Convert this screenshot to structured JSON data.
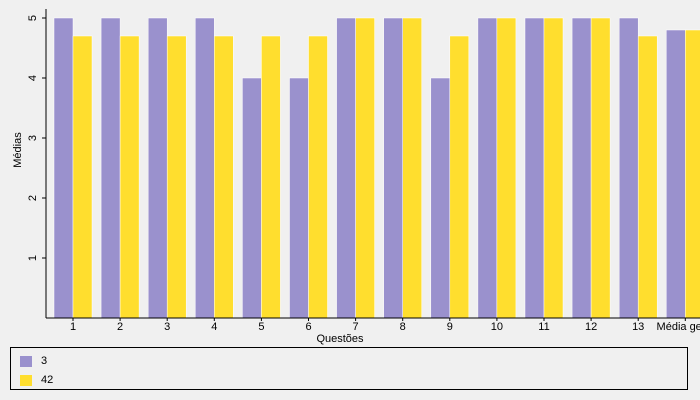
{
  "chart_data": {
    "type": "bar",
    "xlabel": "Questões",
    "ylabel": "Médias",
    "ylim": [
      0,
      5
    ],
    "yticks": [
      1,
      2,
      3,
      4,
      5
    ],
    "grid": false,
    "legend_position": "bottom",
    "categories": [
      "1",
      "2",
      "3",
      "4",
      "5",
      "6",
      "7",
      "8",
      "9",
      "10",
      "11",
      "12",
      "13",
      "Média geral"
    ],
    "series": [
      {
        "name": "3",
        "color": "#9a91cd",
        "values": [
          5,
          5,
          5,
          5,
          4,
          4,
          5,
          5,
          4,
          5,
          5,
          5,
          5,
          4.8
        ]
      },
      {
        "name": "42",
        "color": "#ffde2e",
        "values": [
          4.7,
          4.7,
          4.7,
          4.7,
          4.7,
          4.7,
          5,
          5,
          4.7,
          5,
          5,
          5,
          4.7,
          4.8
        ]
      }
    ]
  }
}
